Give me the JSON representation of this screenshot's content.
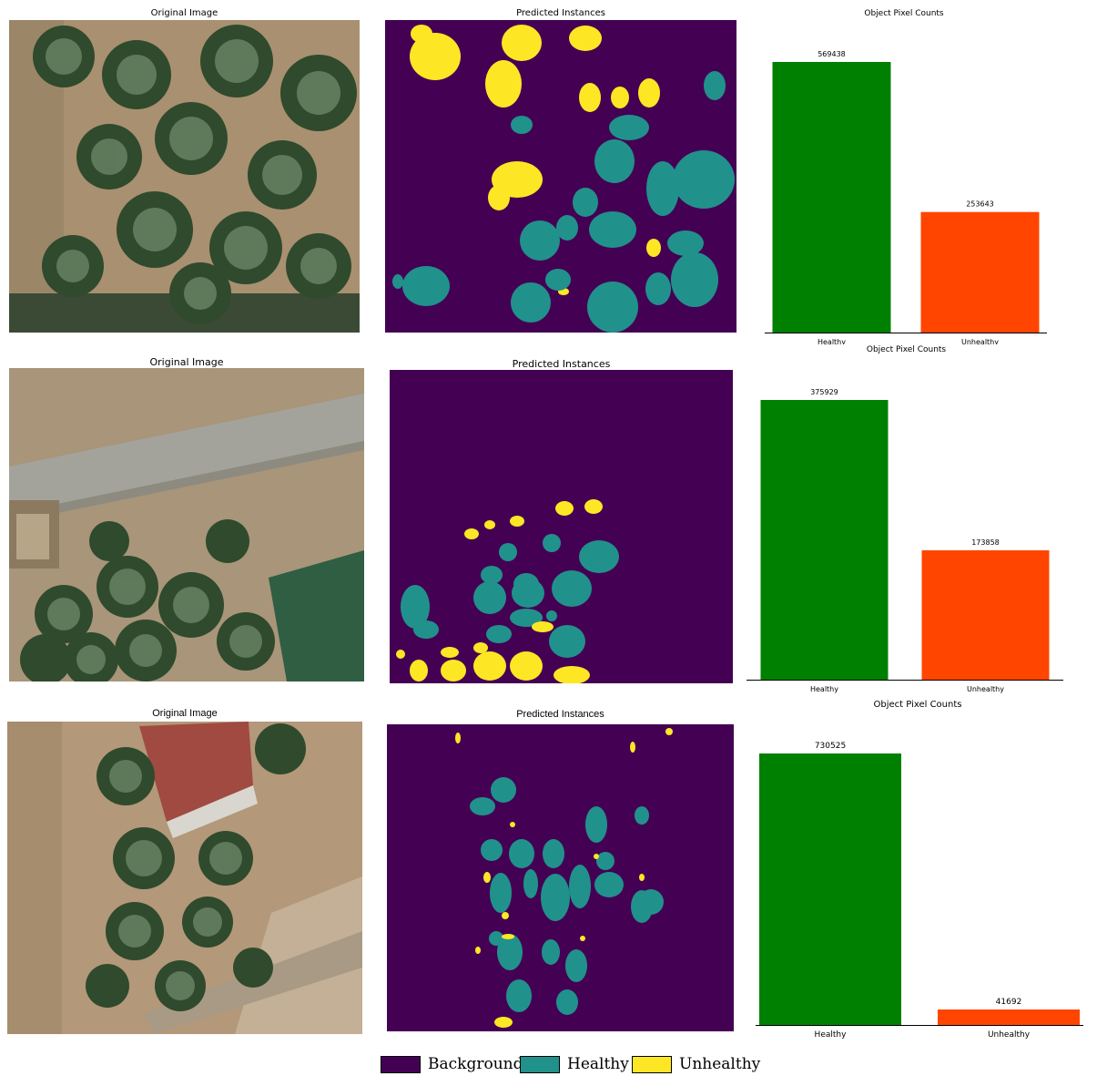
{
  "colors": {
    "background": "#440154",
    "healthy": "#21918c",
    "unhealthy": "#fde725",
    "bar_healthy": "#008000",
    "bar_unhealthy": "#ff4500"
  },
  "rows": [
    {
      "original_title": "Original Image",
      "predicted_title": "Predicted Instances",
      "chart_title": "Object Pixel Counts"
    },
    {
      "original_title": "Original Image",
      "predicted_title": "Predicted Instances",
      "chart_title": "Object Pixel Counts"
    },
    {
      "original_title": "Original Image",
      "predicted_title": "Predicted Instances",
      "chart_title": "Object Pixel Counts"
    }
  ],
  "chart_data": [
    {
      "type": "bar",
      "title": "Object Pixel Counts",
      "categories": [
        "Healthy",
        "Unhealthy"
      ],
      "values": [
        569438,
        253643
      ],
      "value_labels": [
        "569438",
        "253643"
      ],
      "colors": [
        "#008000",
        "#ff4500"
      ]
    },
    {
      "type": "bar",
      "title": "Object Pixel Counts",
      "categories": [
        "Healthy",
        "Unhealthy"
      ],
      "values": [
        375929,
        173858
      ],
      "value_labels": [
        "375929",
        "173858"
      ],
      "colors": [
        "#008000",
        "#ff4500"
      ]
    },
    {
      "type": "bar",
      "title": "Object Pixel Counts",
      "categories": [
        "Healthy",
        "Unhealthy"
      ],
      "values": [
        730525,
        41692
      ],
      "value_labels": [
        "730525",
        "41692"
      ],
      "colors": [
        "#008000",
        "#ff4500"
      ]
    }
  ],
  "legend": [
    {
      "label": "Background",
      "color": "#440154"
    },
    {
      "label": "Healthy",
      "color": "#21918c"
    },
    {
      "label": "Unhealthy",
      "color": "#fde725"
    }
  ]
}
